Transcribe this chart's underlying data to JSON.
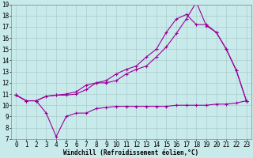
{
  "title": "",
  "xlabel": "Windchill (Refroidissement éolien,°C)",
  "ylabel": "",
  "bg_color": "#c8eaea",
  "line_color": "#990099",
  "grid_color": "#aacccc",
  "xlim": [
    -0.5,
    23.5
  ],
  "ylim": [
    7,
    19
  ],
  "xticks": [
    0,
    1,
    2,
    3,
    4,
    5,
    6,
    7,
    8,
    9,
    10,
    11,
    12,
    13,
    14,
    15,
    16,
    17,
    18,
    19,
    20,
    21,
    22,
    23
  ],
  "yticks": [
    7,
    8,
    9,
    10,
    11,
    12,
    13,
    14,
    15,
    16,
    17,
    18,
    19
  ],
  "line1_x": [
    0,
    1,
    2,
    3,
    4,
    5,
    6,
    7,
    8,
    9,
    10,
    11,
    12,
    13,
    14,
    15,
    16,
    17,
    18,
    19,
    20,
    21,
    22,
    23
  ],
  "line1_y": [
    10.9,
    10.4,
    10.4,
    9.3,
    7.2,
    9.0,
    9.3,
    9.3,
    9.7,
    9.8,
    9.9,
    9.9,
    9.9,
    9.9,
    9.9,
    9.9,
    10.0,
    10.0,
    10.0,
    10.0,
    10.1,
    10.1,
    10.2,
    10.4
  ],
  "line2_x": [
    0,
    1,
    2,
    3,
    4,
    5,
    6,
    7,
    8,
    9,
    10,
    11,
    12,
    13,
    14,
    15,
    16,
    17,
    18,
    19,
    20,
    21,
    22,
    23
  ],
  "line2_y": [
    10.9,
    10.4,
    10.4,
    10.8,
    10.9,
    10.9,
    11.0,
    11.4,
    12.0,
    12.0,
    12.2,
    12.8,
    13.2,
    13.5,
    14.3,
    15.2,
    16.4,
    17.7,
    19.2,
    17.1,
    16.5,
    15.0,
    13.1,
    10.4
  ],
  "line3_x": [
    0,
    1,
    2,
    3,
    4,
    5,
    6,
    7,
    8,
    9,
    10,
    11,
    12,
    13,
    14,
    15,
    16,
    17,
    18,
    19,
    20,
    21,
    22,
    23
  ],
  "line3_y": [
    10.9,
    10.4,
    10.4,
    10.8,
    10.9,
    11.0,
    11.2,
    11.8,
    12.0,
    12.2,
    12.8,
    13.2,
    13.5,
    14.3,
    15.0,
    16.5,
    17.7,
    18.1,
    17.2,
    17.2,
    16.5,
    15.0,
    13.1,
    10.4
  ],
  "tick_fontsize": 5.5,
  "xlabel_fontsize": 5.5,
  "marker_size": 2.5,
  "line_width": 0.8
}
